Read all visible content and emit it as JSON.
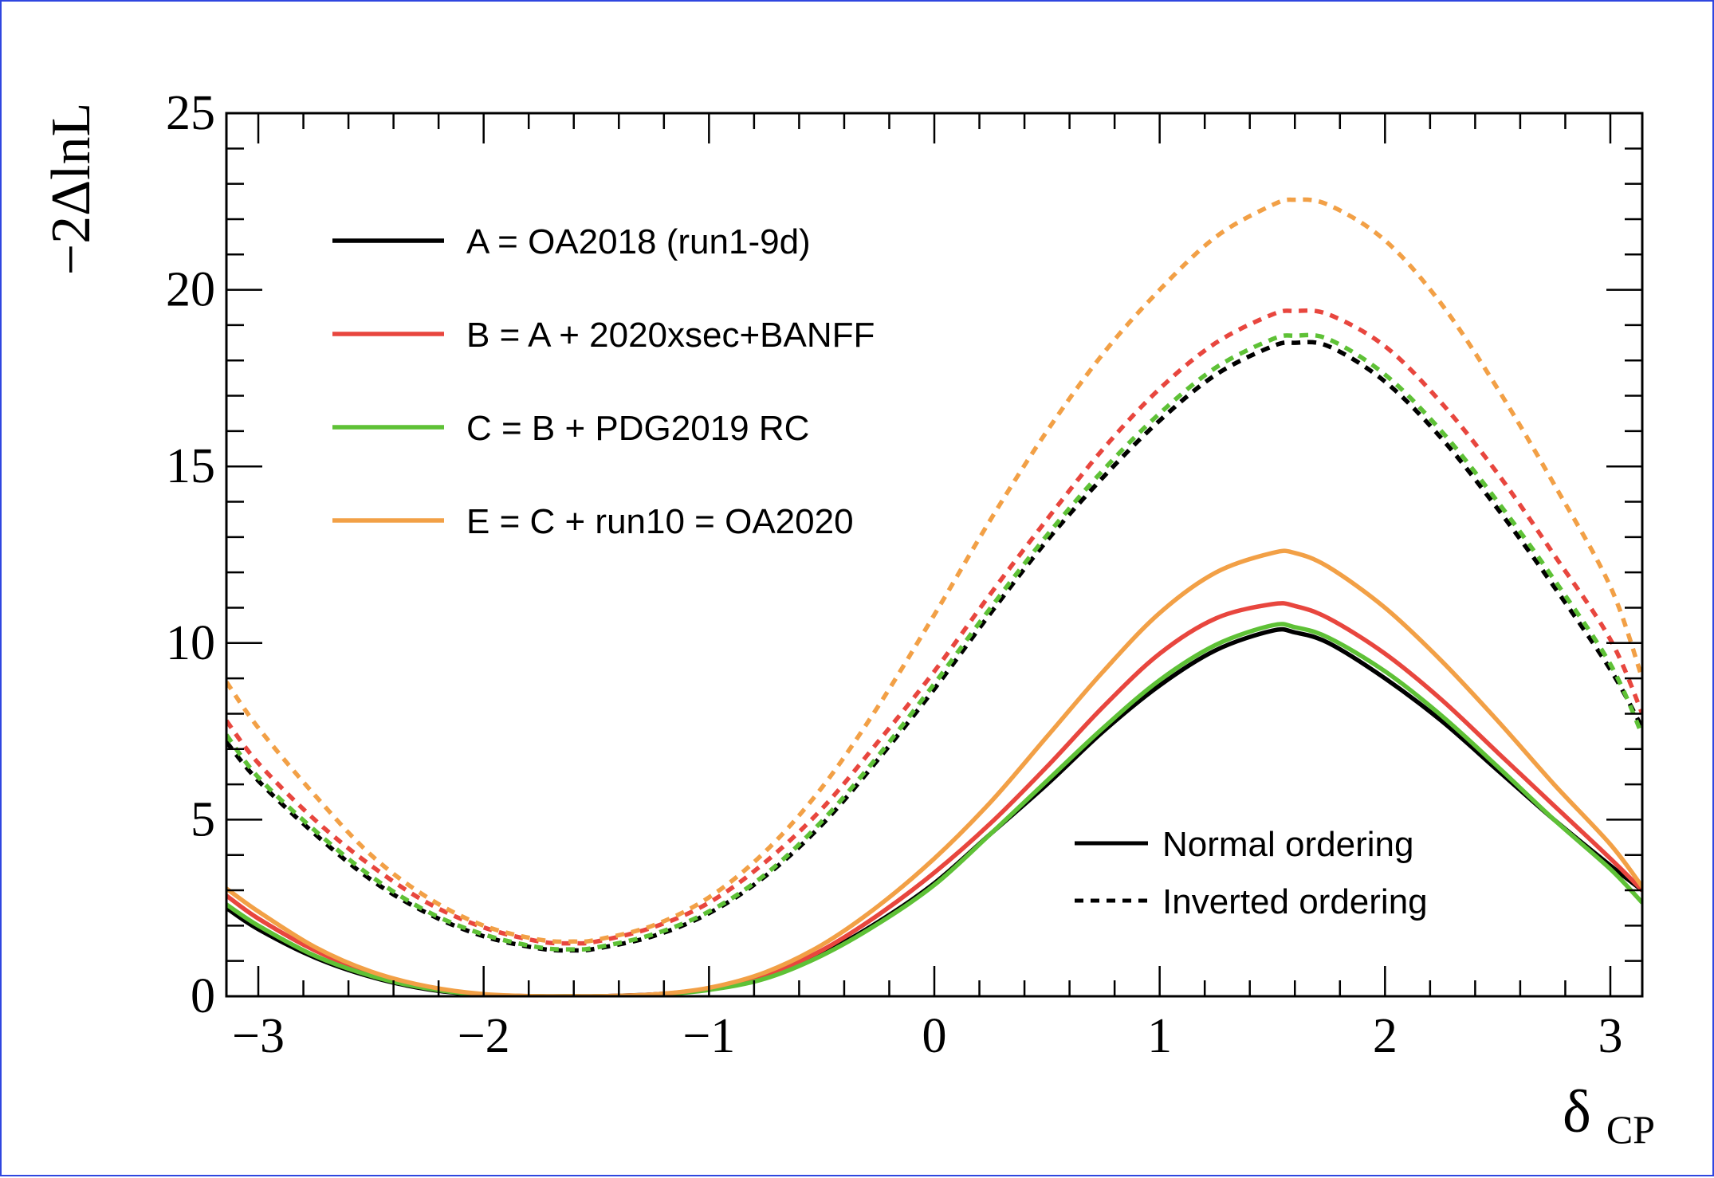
{
  "chart_data": {
    "type": "line",
    "xlabel": "δCP",
    "xlabel_main": "δ",
    "xlabel_sub": "CP",
    "ylabel": "−2ΔlnL",
    "xlim": [
      -3.1416,
      3.1416
    ],
    "ylim": [
      0,
      25
    ],
    "x_ticks": [
      -3,
      -2,
      -1,
      0,
      1,
      2,
      3
    ],
    "x_tick_labels": [
      "−3",
      "−2",
      "−1",
      "0",
      "1",
      "2",
      "3"
    ],
    "y_ticks": [
      0,
      5,
      10,
      15,
      20,
      25
    ],
    "y_tick_labels": [
      "0",
      "5",
      "10",
      "15",
      "20",
      "25"
    ],
    "grid": false,
    "x": [
      -3.1416,
      -3.0,
      -2.75,
      -2.5,
      -2.25,
      -2.0,
      -1.75,
      -1.6,
      -1.5,
      -1.25,
      -1.0,
      -0.75,
      -0.5,
      -0.25,
      0.0,
      0.25,
      0.5,
      0.75,
      1.0,
      1.25,
      1.5,
      1.6,
      1.75,
      2.0,
      2.25,
      2.5,
      2.75,
      3.0,
      3.1416
    ],
    "series": [
      {
        "name": "A = OA2018 (run1-9d)",
        "ordering": "normal",
        "color": "#000000",
        "dashed": false,
        "values": [
          2.5,
          1.9,
          1.1,
          0.55,
          0.2,
          0.04,
          0.0,
          0.0,
          0.0,
          0.05,
          0.2,
          0.55,
          1.2,
          2.1,
          3.2,
          4.6,
          6.0,
          7.5,
          8.8,
          9.8,
          10.35,
          10.3,
          10.0,
          9.0,
          7.8,
          6.4,
          5.0,
          3.7,
          3.0
        ]
      },
      {
        "name": "B = A + 2020xsec+BANFF",
        "ordering": "normal",
        "color": "#e8463e",
        "dashed": false,
        "values": [
          2.85,
          2.2,
          1.3,
          0.65,
          0.25,
          0.05,
          0.0,
          0.0,
          0.0,
          0.05,
          0.22,
          0.6,
          1.3,
          2.3,
          3.5,
          4.9,
          6.5,
          8.2,
          9.7,
          10.7,
          11.1,
          11.05,
          10.7,
          9.7,
          8.4,
          6.9,
          5.4,
          3.9,
          3.0
        ]
      },
      {
        "name": "C = B + PDG2019 RC",
        "ordering": "normal",
        "color": "#5ec136",
        "dashed": false,
        "values": [
          2.6,
          2.0,
          1.15,
          0.58,
          0.22,
          0.04,
          0.0,
          0.0,
          0.0,
          0.04,
          0.18,
          0.5,
          1.15,
          2.05,
          3.15,
          4.6,
          6.1,
          7.6,
          8.95,
          9.95,
          10.5,
          10.45,
          10.15,
          9.2,
          7.95,
          6.5,
          5.0,
          3.6,
          2.65
        ]
      },
      {
        "name": "E = C + run10 = OA2020",
        "ordering": "normal",
        "color": "#f2a046",
        "dashed": false,
        "values": [
          3.05,
          2.4,
          1.4,
          0.7,
          0.28,
          0.06,
          0.0,
          0.0,
          0.0,
          0.05,
          0.24,
          0.68,
          1.45,
          2.55,
          3.9,
          5.5,
          7.35,
          9.2,
          10.85,
          12.0,
          12.55,
          12.55,
          12.15,
          11.0,
          9.5,
          7.8,
          6.0,
          4.3,
          3.1
        ]
      },
      {
        "name": "A = OA2018 (run1-9d)",
        "ordering": "inverted",
        "color": "#000000",
        "dashed": true,
        "values": [
          7.2,
          6.1,
          4.6,
          3.3,
          2.35,
          1.7,
          1.35,
          1.3,
          1.35,
          1.7,
          2.35,
          3.4,
          4.85,
          6.7,
          8.7,
          10.85,
          12.9,
          14.7,
          16.3,
          17.6,
          18.4,
          18.5,
          18.4,
          17.4,
          15.8,
          13.8,
          11.6,
          9.25,
          7.6
        ]
      },
      {
        "name": "B = A + 2020xsec+BANFF",
        "ordering": "inverted",
        "color": "#e8463e",
        "dashed": true,
        "values": [
          7.8,
          6.6,
          5.0,
          3.7,
          2.65,
          1.95,
          1.55,
          1.5,
          1.55,
          1.95,
          2.65,
          3.8,
          5.3,
          7.2,
          9.2,
          11.4,
          13.5,
          15.5,
          17.2,
          18.5,
          19.3,
          19.4,
          19.3,
          18.4,
          16.8,
          14.8,
          12.5,
          10.1,
          8.0
        ]
      },
      {
        "name": "C = B + PDG2019 RC",
        "ordering": "inverted",
        "color": "#5ec136",
        "dashed": true,
        "values": [
          7.4,
          6.2,
          4.7,
          3.4,
          2.4,
          1.75,
          1.38,
          1.33,
          1.38,
          1.75,
          2.4,
          3.45,
          4.95,
          6.8,
          8.85,
          11.0,
          13.05,
          14.9,
          16.5,
          17.8,
          18.6,
          18.7,
          18.6,
          17.6,
          16.0,
          14.0,
          11.8,
          9.4,
          7.4
        ]
      },
      {
        "name": "E = C + run10 = OA2020",
        "ordering": "inverted",
        "color": "#f2a046",
        "dashed": true,
        "values": [
          8.9,
          7.6,
          5.7,
          4.0,
          2.8,
          2.0,
          1.6,
          1.55,
          1.6,
          2.0,
          2.8,
          4.1,
          5.9,
          8.2,
          10.8,
          13.5,
          16.0,
          18.2,
          20.0,
          21.5,
          22.4,
          22.55,
          22.4,
          21.4,
          19.6,
          17.2,
          14.5,
          11.6,
          9.0
        ]
      }
    ],
    "legend_colors": {
      "entries": [
        {
          "label": "A = OA2018 (run1-9d)",
          "color": "#000000"
        },
        {
          "label": "B = A + 2020xsec+BANFF",
          "color": "#e8463e"
        },
        {
          "label": "C = B + PDG2019 RC",
          "color": "#5ec136"
        },
        {
          "label": "E = C + run10 = OA2020",
          "color": "#f2a046"
        }
      ],
      "placement": "top-left"
    },
    "legend_style": {
      "entries": [
        {
          "label": "Normal ordering",
          "dashed": false
        },
        {
          "label": "Inverted ordering",
          "dashed": true
        }
      ],
      "placement": "bottom-right"
    }
  }
}
